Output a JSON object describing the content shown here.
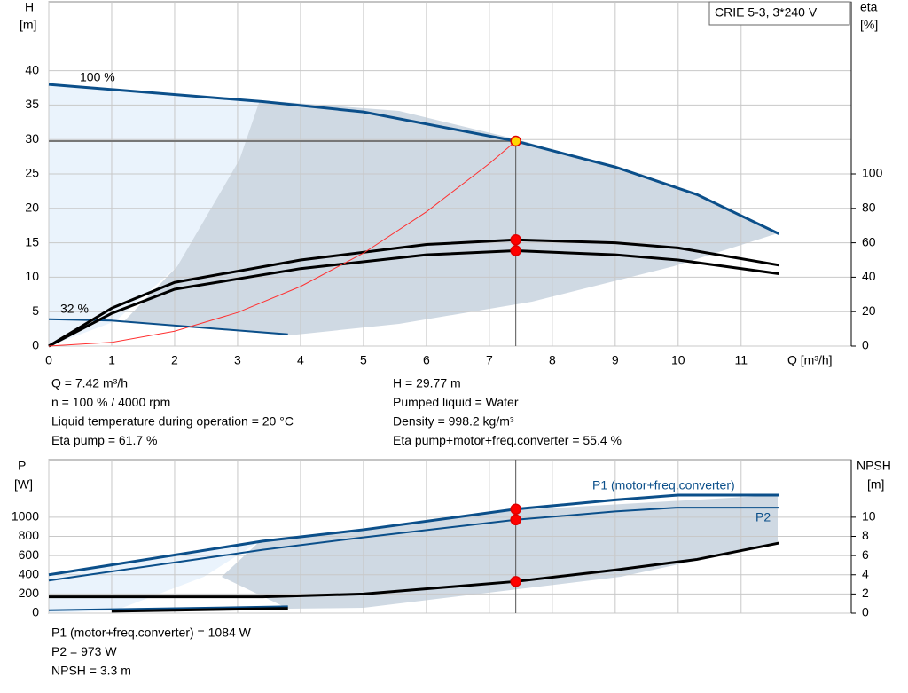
{
  "chart_data": [
    {
      "type": "line",
      "title": "CRIE 5-3, 3*240 V",
      "xlabel": "Q [m³/h]",
      "ylabel": [
        "H",
        "[m]"
      ],
      "y2label": [
        "eta",
        "[%]"
      ],
      "xlim": [
        0,
        12.75
      ],
      "xticks": [
        0,
        1,
        2,
        3,
        4,
        5,
        6,
        7,
        8,
        9,
        10,
        11
      ],
      "ylim": [
        0,
        50
      ],
      "yticks": [
        0,
        5,
        10,
        15,
        20,
        25,
        30,
        35,
        40
      ],
      "y2lim": [
        0,
        200
      ],
      "y2ticks": [
        0,
        20,
        40,
        60,
        80,
        100
      ],
      "grid": true,
      "series": [
        {
          "name": "100 %",
          "color": "#0b4f8a",
          "width": 3,
          "x": [
            0,
            3.4,
            5,
            7.42,
            9,
            10.3,
            11.6
          ],
          "values": [
            38,
            35.5,
            34,
            29.77,
            26,
            22,
            16.3
          ]
        },
        {
          "name": "32 %",
          "color": "#0b4f8a",
          "width": 2,
          "x": [
            0,
            1,
            3.8
          ],
          "values": [
            3.9,
            3.7,
            1.7
          ]
        },
        {
          "color": "#000000",
          "width": 3,
          "axis": "y2",
          "x": [
            0,
            1,
            2,
            4,
            6,
            7.42,
            9,
            10,
            11.6
          ],
          "values": [
            0,
            22,
            37,
            50,
            59,
            61.7,
            60,
            57,
            47
          ]
        },
        {
          "color": "#000000",
          "width": 3,
          "axis": "y2",
          "x": [
            0,
            1,
            2,
            4,
            6,
            7.42,
            9,
            10,
            11.6
          ],
          "values": [
            0,
            19,
            33,
            45,
            53,
            55.4,
            53,
            50,
            42
          ]
        },
        {
          "color": "#ff3030",
          "width": 1,
          "x": [
            0,
            1,
            2,
            3,
            4,
            5,
            6,
            7,
            7.42
          ],
          "values": [
            0,
            0.54,
            2.16,
            4.87,
            8.65,
            13.5,
            19.5,
            26.5,
            29.77
          ]
        }
      ],
      "points": [
        {
          "x": 7.42,
          "y": 29.77,
          "fill": "#ffd700"
        },
        {
          "x": 7.42,
          "y": 61.7,
          "axis": "y2",
          "fill": "#ff0000"
        },
        {
          "x": 7.42,
          "y": 55.4,
          "axis": "y2",
          "fill": "#ff0000"
        }
      ]
    },
    {
      "type": "line",
      "ylabel": [
        "P",
        "[W]"
      ],
      "y2label": [
        "NPSH",
        "[m]"
      ],
      "xlim": [
        0,
        12.75
      ],
      "xticks": [
        0,
        1,
        2,
        3,
        4,
        5,
        6,
        7,
        8,
        9,
        10,
        11
      ],
      "ylim": [
        0,
        1600
      ],
      "yticks": [
        0,
        200,
        400,
        600,
        800,
        1000
      ],
      "y2lim": [
        0,
        16
      ],
      "y2ticks": [
        0,
        2,
        4,
        6,
        8,
        10
      ],
      "grid": true,
      "series": [
        {
          "name": "P1 (motor+freq.converter)",
          "color": "#0b4f8a",
          "width": 3,
          "x": [
            0,
            3.4,
            5,
            7.42,
            9,
            10,
            11.6
          ],
          "values": [
            400,
            750,
            870,
            1084,
            1180,
            1230,
            1230
          ]
        },
        {
          "name": "P2",
          "color": "#0b4f8a",
          "width": 2,
          "x": [
            0,
            3.4,
            5,
            7.42,
            9,
            10,
            11.6
          ],
          "values": [
            340,
            660,
            790,
            973,
            1060,
            1100,
            1100
          ]
        },
        {
          "color": "#0b4f8a",
          "width": 2,
          "x": [
            0,
            1,
            3.8
          ],
          "values": [
            30,
            40,
            70
          ]
        },
        {
          "color": "#000000",
          "width": 3,
          "axis": "y2",
          "x": [
            0,
            3.4,
            5,
            7.42,
            9,
            10.3,
            11.6
          ],
          "values": [
            1.7,
            1.7,
            2,
            3.3,
            4.5,
            5.6,
            7.3
          ]
        },
        {
          "color": "#000000",
          "width": 3,
          "axis": "y2",
          "x": [
            1,
            3.8
          ],
          "values": [
            0.2,
            0.5
          ]
        }
      ],
      "points": [
        {
          "x": 7.42,
          "y": 1084,
          "fill": "#ff0000"
        },
        {
          "x": 7.42,
          "y": 973,
          "fill": "#ff0000"
        },
        {
          "x": 7.42,
          "y": 3.3,
          "axis": "y2",
          "fill": "#ff0000"
        }
      ]
    }
  ],
  "info": {
    "top_left": [
      "Q = 7.42 m³/h",
      "n = 100 % / 4000 rpm",
      "Liquid temperature during operation = 20 °C",
      "Eta pump = 61.7 %"
    ],
    "top_right": [
      "H = 29.77 m",
      "Pumped liquid = Water",
      "Density = 998.2 kg/m³",
      "Eta pump+motor+freq.converter = 55.4 %"
    ],
    "bottom": [
      "P1 (motor+freq.converter) = 1084 W",
      "P2 = 973 W",
      "NPSH = 3.3 m"
    ]
  }
}
